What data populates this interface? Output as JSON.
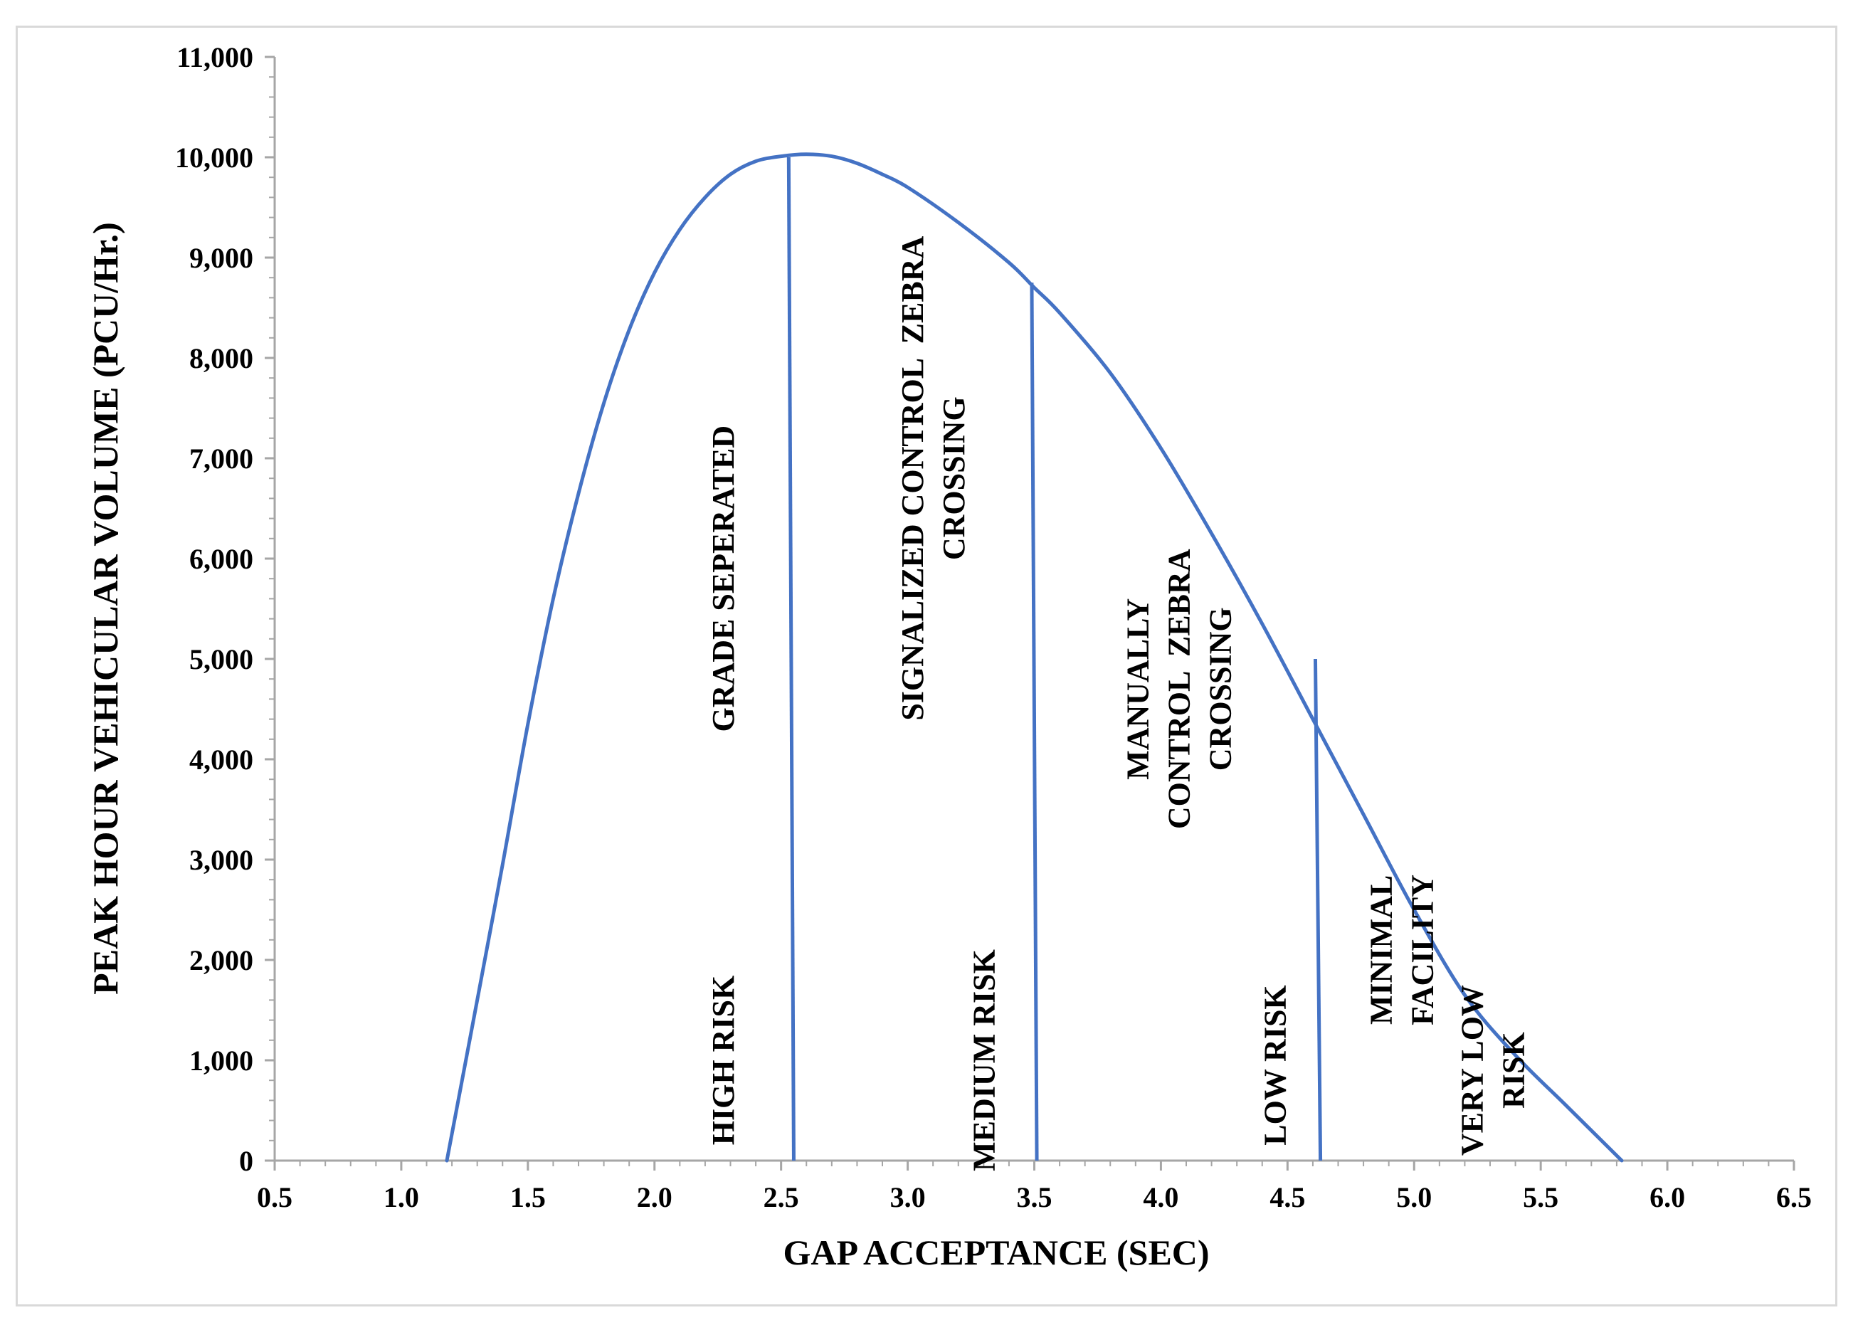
{
  "chart_data": {
    "type": "line",
    "title": "",
    "xlabel": "GAP ACCEPTANCE  (SEC)",
    "ylabel": "PEAK HOUR VEHICULAR  VOLUME  (PCU/Hr.)",
    "xlim": [
      0.5,
      6.5
    ],
    "ylim": [
      0,
      11000
    ],
    "x_ticks": [
      0.5,
      1.0,
      1.5,
      2.0,
      2.5,
      3.0,
      3.5,
      4.0,
      4.5,
      5.0,
      5.5,
      6.0,
      6.5
    ],
    "x_tick_labels": [
      "0.5",
      "1.0",
      "1.5",
      "2.0",
      "2.5",
      "3.0",
      "3.5",
      "4.0",
      "4.5",
      "5.0",
      "5.5",
      "6.0",
      "6.5"
    ],
    "y_ticks": [
      0,
      1000,
      2000,
      3000,
      4000,
      5000,
      6000,
      7000,
      8000,
      9000,
      10000,
      11000
    ],
    "y_tick_labels": [
      "0",
      "1,000",
      "2,000",
      "3,000",
      "4,000",
      "5,000",
      "6,000",
      "7,000",
      "8,000",
      "9,000",
      "10,000",
      "11,000"
    ],
    "series": [
      {
        "name": "Peak hour vehicular volume",
        "color": "#4472c4",
        "x": [
          1.18,
          1.3,
          1.4,
          1.5,
          1.6,
          1.7,
          1.8,
          1.9,
          2.0,
          2.1,
          2.2,
          2.3,
          2.4,
          2.5,
          2.6,
          2.7,
          2.8,
          2.9,
          3.0,
          3.2,
          3.4,
          3.5,
          3.6,
          3.8,
          4.0,
          4.2,
          4.4,
          4.6,
          4.8,
          5.0,
          5.2,
          5.4,
          5.6,
          5.82
        ],
        "y": [
          0,
          1600,
          2950,
          4350,
          5600,
          6650,
          7550,
          8280,
          8850,
          9280,
          9600,
          9830,
          9960,
          10010,
          10030,
          10010,
          9940,
          9830,
          9700,
          9350,
          8950,
          8700,
          8450,
          7850,
          7100,
          6250,
          5350,
          4400,
          3450,
          2500,
          1650,
          1050,
          550,
          0
        ]
      }
    ],
    "boundaries": [
      {
        "x_top": 2.53,
        "x_bottom": 2.55,
        "y_top": 10000
      },
      {
        "x_top": 3.49,
        "x_bottom": 3.51,
        "y_top": 8750
      },
      {
        "x_top": 4.61,
        "x_bottom": 4.63,
        "y_top": 5000
      }
    ],
    "annotations": [
      {
        "lines": [
          "GRADE SEPERATED"
        ],
        "x": 2.27,
        "y": 5800
      },
      {
        "lines": [
          "SIGNALIZED CONTROL  ZEBRA",
          "CROSSING"
        ],
        "x": 3.1,
        "y": 6800
      },
      {
        "lines": [
          "MANUALLY",
          "CONTROL  ZEBRA",
          "CROSSING"
        ],
        "x": 4.07,
        "y": 4700
      },
      {
        "lines": [
          "MINIMAL",
          "FACILITY"
        ],
        "x": 4.95,
        "y": 2100
      },
      {
        "lines": [
          "HIGH RISK"
        ],
        "x": 2.27,
        "y": 1000
      },
      {
        "lines": [
          "MEDIUM RISK"
        ],
        "x": 3.3,
        "y": 1000
      },
      {
        "lines": [
          "LOW RISK"
        ],
        "x": 4.45,
        "y": 950
      },
      {
        "lines": [
          "VERY LOW",
          "RISK"
        ],
        "x": 5.31,
        "y": 900
      }
    ]
  }
}
